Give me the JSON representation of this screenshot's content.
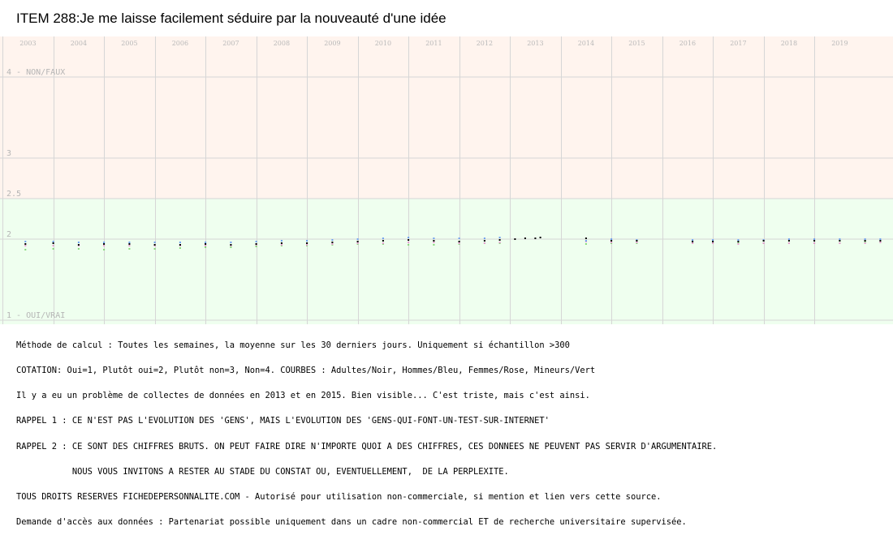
{
  "title": "ITEM 288:Je me laisse facilement séduire par la nouveauté d'une idée",
  "chart_data": {
    "type": "scatter",
    "title": "ITEM 288:Je me laisse facilement séduire par la nouveauté d'une idée",
    "years": [
      "2003",
      "2004",
      "2005",
      "2006",
      "2007",
      "2008",
      "2009",
      "2010",
      "2011",
      "2012",
      "2013",
      "2014",
      "2015",
      "2016",
      "2017",
      "2018",
      "2019"
    ],
    "y_ticks": [
      {
        "value": 4,
        "label": "4 - NON/FAUX"
      },
      {
        "value": 3,
        "label": "3"
      },
      {
        "value": 2.5,
        "label": "2.5"
      },
      {
        "value": 2,
        "label": "2"
      },
      {
        "value": 1,
        "label": "1 - OUI/VRAI"
      }
    ],
    "ylim": [
      1,
      4
    ],
    "xlim": [
      2002.45,
      2020.05
    ],
    "series": [
      {
        "name": "Adultes",
        "color": "#000000",
        "x": [
          2002.95,
          2003.5,
          2004.0,
          2004.5,
          2005.0,
          2005.5,
          2006.0,
          2006.5,
          2007.0,
          2007.5,
          2008.0,
          2008.5,
          2009.0,
          2009.5,
          2010.0,
          2010.5,
          2011.0,
          2011.5,
          2012.0,
          2012.3,
          2012.6,
          2012.8,
          2013.0,
          2013.1,
          2014.0,
          2014.5,
          2015.0,
          2016.1,
          2016.5,
          2017.0,
          2017.5,
          2018.0,
          2018.5,
          2019.0,
          2019.5,
          2019.8
        ],
        "y": [
          1.94,
          1.95,
          1.93,
          1.94,
          1.94,
          1.93,
          1.93,
          1.94,
          1.93,
          1.94,
          1.95,
          1.95,
          1.96,
          1.97,
          1.98,
          1.99,
          1.98,
          1.97,
          1.98,
          1.99,
          2.0,
          2.01,
          2.01,
          2.02,
          2.01,
          1.98,
          1.98,
          1.97,
          1.97,
          1.97,
          1.98,
          1.98,
          1.98,
          1.98,
          1.98,
          1.98
        ]
      },
      {
        "name": "Hommes",
        "color": "#6ea0ee",
        "x": [
          2002.95,
          2003.5,
          2004.0,
          2004.5,
          2005.0,
          2005.5,
          2006.0,
          2006.5,
          2007.0,
          2007.5,
          2008.0,
          2008.5,
          2009.0,
          2009.5,
          2010.0,
          2010.5,
          2011.0,
          2011.5,
          2012.0,
          2012.3,
          2014.0,
          2014.5,
          2015.0,
          2016.1,
          2016.5,
          2017.0,
          2017.5,
          2018.0,
          2018.5,
          2019.0,
          2019.5,
          2019.8
        ],
        "y": [
          1.97,
          1.97,
          1.96,
          1.96,
          1.96,
          1.96,
          1.96,
          1.96,
          1.96,
          1.97,
          1.98,
          1.98,
          1.99,
          2.0,
          2.01,
          2.02,
          2.01,
          2.01,
          2.01,
          2.02,
          1.98,
          2.0,
          1.99,
          1.99,
          1.99,
          1.99,
          1.99,
          2.0,
          2.0,
          2.0,
          2.0,
          2.0
        ]
      },
      {
        "name": "Femmes",
        "color": "#e79bd0",
        "x": [
          2002.95,
          2003.5,
          2004.0,
          2004.5,
          2005.0,
          2005.5,
          2006.0,
          2006.5,
          2007.0,
          2007.5,
          2008.0,
          2008.5,
          2009.0,
          2009.5,
          2010.0,
          2010.5,
          2011.0,
          2011.5,
          2012.0,
          2012.3,
          2014.0,
          2014.5,
          2015.0,
          2016.1,
          2016.5,
          2017.0,
          2017.5,
          2018.0,
          2018.5,
          2019.0,
          2019.5,
          2019.8
        ],
        "y": [
          1.92,
          1.92,
          1.92,
          1.92,
          1.92,
          1.92,
          1.92,
          1.92,
          1.92,
          1.93,
          1.93,
          1.93,
          1.94,
          1.95,
          1.95,
          1.96,
          1.96,
          1.95,
          1.95,
          1.96,
          1.97,
          1.96,
          1.96,
          1.95,
          1.95,
          1.94,
          1.95,
          1.95,
          1.95,
          1.95,
          1.95,
          1.96
        ]
      },
      {
        "name": "Mineurs",
        "color": "#86d97a",
        "x": [
          2002.95,
          2003.5,
          2004.0,
          2004.5,
          2005.0,
          2005.5,
          2006.0,
          2006.5,
          2007.0,
          2007.5,
          2008.0,
          2008.5,
          2009.0,
          2009.5,
          2010.0,
          2010.5,
          2011.0,
          2011.5,
          2012.0,
          2012.3,
          2014.0,
          2014.5,
          2015.0,
          2016.1,
          2016.5,
          2017.0,
          2017.5,
          2018.0,
          2018.5,
          2019.0,
          2019.5,
          2019.8
        ],
        "y": [
          1.87,
          1.88,
          1.88,
          1.87,
          1.88,
          1.88,
          1.89,
          1.9,
          1.9,
          1.91,
          1.92,
          1.92,
          1.93,
          1.94,
          1.94,
          1.93,
          1.93,
          1.94,
          1.95,
          1.95,
          1.94,
          1.95,
          1.95,
          1.95,
          1.95,
          1.95,
          1.95,
          1.95,
          1.95,
          1.95,
          1.96,
          1.96
        ]
      }
    ]
  },
  "notes": [
    "Méthode de calcul : Toutes les semaines, la moyenne sur les 30 derniers jours. Uniquement si échantillon >300",
    "COTATION: Oui=1, Plutôt oui=2, Plutôt non=3, Non=4. COURBES : Adultes/Noir, Hommes/Bleu, Femmes/Rose, Mineurs/Vert",
    "Il y a eu un problème de collectes de données en 2013 et en 2015. Bien visible... C'est triste, mais c'est ainsi.",
    "RAPPEL 1 : CE N'EST PAS L'EVOLUTION DES 'GENS', MAIS L'EVOLUTION DES 'GENS-QUI-FONT-UN-TEST-SUR-INTERNET'",
    "RAPPEL 2 : CE SONT DES CHIFFRES BRUTS. ON PEUT FAIRE DIRE N'IMPORTE QUOI A DES CHIFFRES, CES DONNEES NE PEUVENT PAS SERVIR D'ARGUMENTAIRE.",
    "           NOUS VOUS INVITONS A RESTER AU STADE DU CONSTAT OU, EVENTUELLEMENT,  DE LA PERPLEXITE.",
    "TOUS DROITS RESERVES FICHEDEPERSONNALITE.COM - Autorisé pour utilisation non-commerciale, si mention et lien vers cette source.",
    "Demande d'accès aux données : Partenariat possible uniquement dans un cadre non-commercial ET de recherche universitaire supervisée."
  ],
  "colors": {
    "upper_band": "#fff4ee",
    "lower_band": "#efffef",
    "grid": "#d6d6d6"
  }
}
